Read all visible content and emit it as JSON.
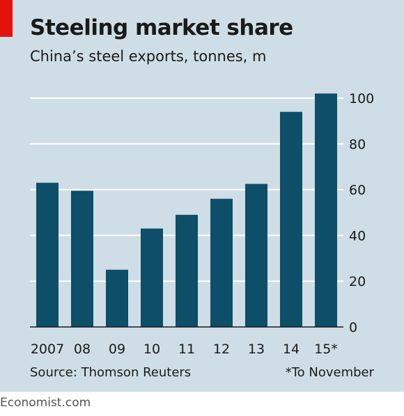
{
  "header": {
    "title": "Steeling market share",
    "subtitle": "China’s steel exports, tonnes, m"
  },
  "footer": {
    "source": "Source: Thomson Reuters",
    "footnote": "*To November",
    "brand": "Economist.com"
  },
  "colors": {
    "background": "#cfdde6",
    "bar": "#0d4e68",
    "accent": "#e3120b",
    "gridline": "#ffffff"
  },
  "chart_data": {
    "type": "bar",
    "title": "Steeling market share",
    "subtitle": "China’s steel exports, tonnes, m",
    "categories": [
      "2007",
      "08",
      "09",
      "10",
      "11",
      "12",
      "13",
      "14",
      "15*"
    ],
    "values": [
      63,
      59.5,
      25,
      43,
      49,
      56,
      62.5,
      94,
      102
    ],
    "ylim": [
      0,
      100
    ],
    "yticks": [
      0,
      20,
      40,
      60,
      80,
      100
    ],
    "ytick_labels": [
      "0",
      "20",
      "40",
      "60",
      "80",
      "100"
    ],
    "y_axis_side": "right",
    "grid": true,
    "legend": "none"
  }
}
